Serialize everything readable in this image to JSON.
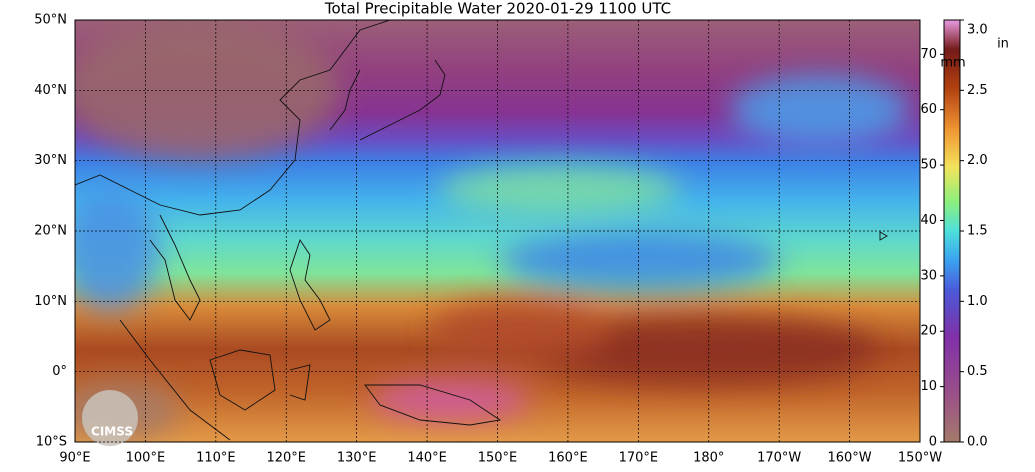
{
  "map": {
    "title": "Total Precipitable Water  2020-01-29 1100 UTC",
    "lonlim": [
      90,
      210
    ],
    "latlim": [
      -10,
      50
    ],
    "lat_ticks": [
      {
        "value": 50,
        "label": "50°N"
      },
      {
        "value": 40,
        "label": "40°N"
      },
      {
        "value": 30,
        "label": "30°N"
      },
      {
        "value": 20,
        "label": "20°N"
      },
      {
        "value": 10,
        "label": "10°N"
      },
      {
        "value": 0,
        "label": "0°"
      },
      {
        "value": -10,
        "label": "10°S"
      }
    ],
    "lon_ticks": [
      {
        "value": 90,
        "label": "90°E"
      },
      {
        "value": 100,
        "label": "100°E"
      },
      {
        "value": 110,
        "label": "110°E"
      },
      {
        "value": 120,
        "label": "120°E"
      },
      {
        "value": 130,
        "label": "130°E"
      },
      {
        "value": 140,
        "label": "140°E"
      },
      {
        "value": 150,
        "label": "150°E"
      },
      {
        "value": 160,
        "label": "160°E"
      },
      {
        "value": 170,
        "label": "170°E"
      },
      {
        "value": 180,
        "label": "180°"
      },
      {
        "value": 190,
        "label": "170°W"
      },
      {
        "value": 200,
        "label": "160°W"
      },
      {
        "value": 210,
        "label": "150°W"
      }
    ],
    "logo": "CIMSS",
    "colorbar": {
      "mm_label": "mm",
      "in_label": "in",
      "mm_lim": [
        0,
        76.2
      ],
      "in_lim": [
        0,
        3.0
      ],
      "mm_ticks": [
        0,
        10,
        20,
        30,
        40,
        50,
        60,
        70
      ],
      "in_ticks": [
        {
          "value": 0,
          "label": "0.0"
        },
        {
          "value": 0.5,
          "label": "0.5"
        },
        {
          "value": 1,
          "label": "1.0"
        },
        {
          "value": 1.5,
          "label": "1.5"
        },
        {
          "value": 2,
          "label": "2.0"
        },
        {
          "value": 2.5,
          "label": "2.5"
        },
        {
          "value": 3,
          "label": "3.0"
        }
      ]
    }
  }
}
